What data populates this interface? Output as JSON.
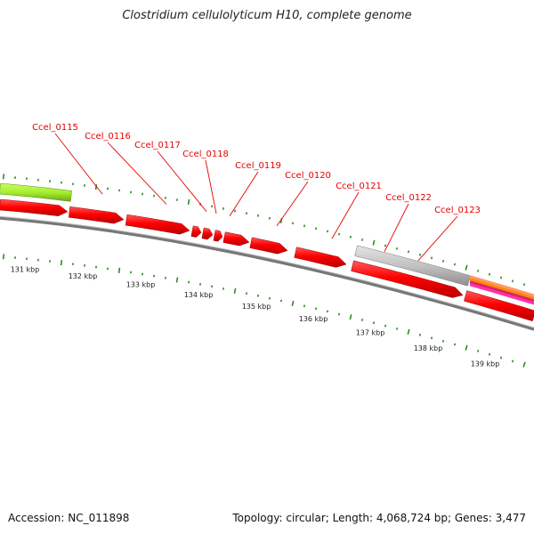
{
  "title": "Clostridium cellulolyticum H10, complete genome",
  "footer": {
    "accession": "Accession: NC_011898",
    "summary": "Topology: circular; Length: 4,068,724 bp; Genes: 3,477"
  },
  "colors": {
    "gene_forward": "#ff0000",
    "gene_other": "#c0c0c0",
    "gene_green": "#aaf23a",
    "backbone": "#777777",
    "tick": "#2e8b22",
    "label": "#e60000"
  },
  "genes": [
    "Ccel_0115",
    "Ccel_0116",
    "Ccel_0117",
    "Ccel_0118",
    "Ccel_0119",
    "Ccel_0120",
    "Ccel_0121",
    "Ccel_0122",
    "Ccel_0123"
  ],
  "kbp_labels": [
    "131 kbp",
    "132 kbp",
    "133 kbp",
    "134 kbp",
    "135 kbp",
    "136 kbp",
    "137 kbp",
    "138 kbp",
    "139 kbp"
  ]
}
